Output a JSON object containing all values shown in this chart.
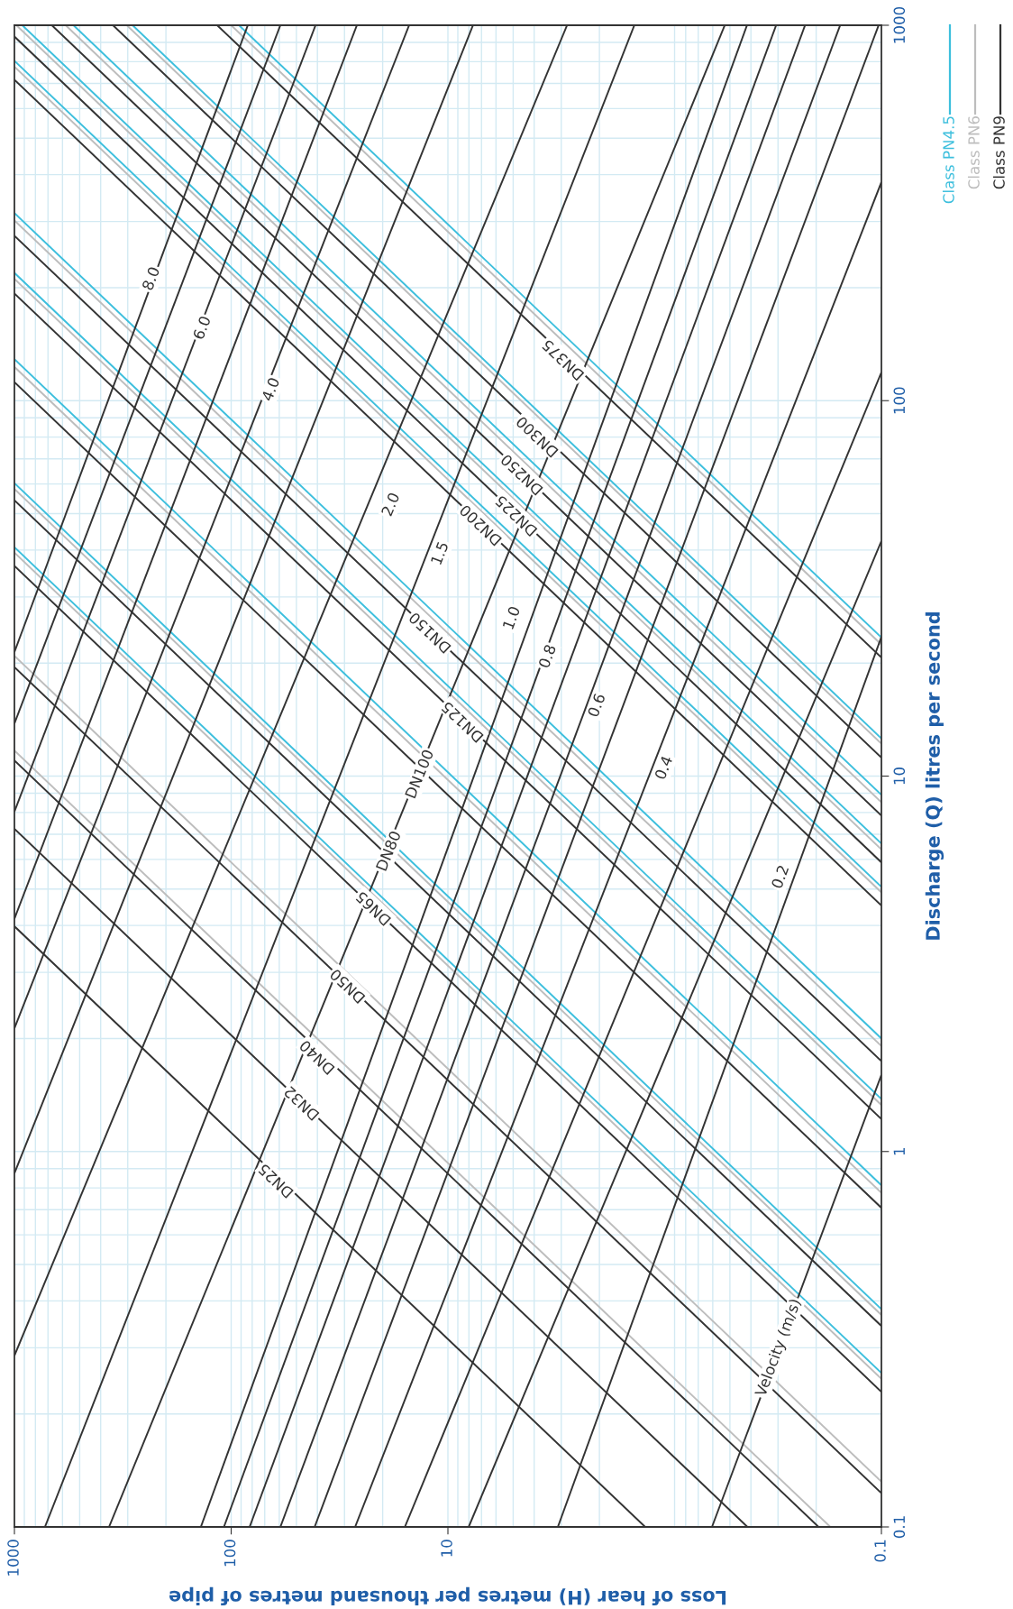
{
  "chart_data": {
    "type": "line",
    "xlabel": "Loss of hear (H) metres per thousand metres of pipe",
    "ylabel": "Discharge (Q) litres per second",
    "log": "xy",
    "xlim": [
      1000,
      0.1
    ],
    "ylim": [
      0.1,
      1000
    ],
    "xticks": [
      1000,
      100,
      10,
      0.1
    ],
    "yticks": [
      0.1,
      1,
      10,
      100,
      1000
    ],
    "grid": true,
    "legend": "top right",
    "marker": "none",
    "line_style": "solid",
    "series": [
      {
        "name": "Class PN4.5",
        "color": "#3dbfdd",
        "x": [
          92.0,
          0.1
        ],
        "values": [
          1000,
          23.4
        ]
      },
      {
        "color": "#3dbfdd",
        "x": [
          285,
          0.1
        ],
        "values": [
          1000,
          12.6
        ]
      },
      {
        "color": "#3dbfdd",
        "x": [
          534,
          0.1
        ],
        "values": [
          1000,
          8.91
        ]
      },
      {
        "color": "#3dbfdd",
        "x": [
          920,
          0.1
        ],
        "values": [
          1000,
          6.61
        ]
      },
      {
        "color": "#3dbfdd",
        "x": [
          1000,
          0.1
        ],
        "values": [
          804,
          5.07
        ]
      },
      {
        "color": "#3dbfdd",
        "x": [
          1000,
          0.1
        ],
        "values": [
          316,
          2.0
        ]
      },
      {
        "color": "#3dbfdd",
        "x": [
          1000,
          0.1
        ],
        "values": [
          219,
          1.38
        ]
      },
      {
        "color": "#3dbfdd",
        "x": [
          1000,
          0.1
        ],
        "values": [
          129,
          0.813
        ]
      },
      {
        "color": "#3dbfdd",
        "x": [
          1000,
          0.1
        ],
        "values": [
          60.3,
          0.38
        ]
      },
      {
        "color": "#3dbfdd",
        "x": [
          1000,
          0.1
        ],
        "values": [
          40.7,
          0.257
        ]
      },
      {
        "name": "Class PN6",
        "color": "#bdbdbd",
        "x": [
          100,
          0.1
        ],
        "values": [
          1000,
          22.4
        ]
      },
      {
        "color": "#bdbdbd",
        "x": [
          303,
          0.1
        ],
        "values": [
          1000,
          12.2
        ]
      },
      {
        "color": "#bdbdbd",
        "x": [
          580,
          0.1
        ],
        "values": [
          1000,
          8.51
        ]
      },
      {
        "color": "#bdbdbd",
        "x": [
          979,
          0.1
        ],
        "values": [
          1000,
          6.38
        ]
      },
      {
        "color": "#bdbdbd",
        "x": [
          1000,
          0.1
        ],
        "values": [
          776,
          4.9
        ]
      },
      {
        "color": "#bdbdbd",
        "x": [
          1000,
          0.1
        ],
        "values": [
          302,
          1.91
        ]
      },
      {
        "color": "#bdbdbd",
        "x": [
          1000,
          0.1
        ],
        "values": [
          211,
          1.33
        ]
      },
      {
        "color": "#bdbdbd",
        "x": [
          1000,
          0.1
        ],
        "values": [
          123,
          0.776
        ]
      },
      {
        "color": "#bdbdbd",
        "x": [
          1000,
          0.1
        ],
        "values": [
          58.2,
          0.367
        ]
      },
      {
        "color": "#bdbdbd",
        "x": [
          1000,
          0.1
        ],
        "values": [
          39.4,
          0.248
        ]
      },
      {
        "color": "#bdbdbd",
        "x": [
          1000,
          0.1
        ],
        "values": [
          20.9,
          0.132
        ]
      },
      {
        "color": "#bdbdbd",
        "x": [
          1000,
          0.172
        ],
        "values": [
          11.7,
          0.1
        ]
      },
      {
        "name": "Class PN9",
        "color": "#333333",
        "x": [
          116,
          0.1
        ],
        "values": [
          1000,
          20.7
        ]
      },
      {
        "color": "#333333",
        "x": [
          351,
          0.1
        ],
        "values": [
          1000,
          11.2
        ]
      },
      {
        "color": "#333333",
        "x": [
          672,
          0.1
        ],
        "values": [
          1000,
          7.85
        ]
      },
      {
        "color": "#333333",
        "x": [
          1000,
          0.1
        ],
        "values": [
          933,
          5.89
        ]
      },
      {
        "color": "#333333",
        "x": [
          1000,
          0.1
        ],
        "values": [
          716,
          4.52
        ]
      },
      {
        "color": "#333333",
        "x": [
          1000,
          0.1
        ],
        "values": [
          275,
          1.74
        ]
      },
      {
        "color": "#333333",
        "x": [
          1000,
          0.1
        ],
        "values": [
          193,
          1.22
        ]
      },
      {
        "color": "#333333",
        "x": [
          1000,
          0.1
        ],
        "values": [
          112,
          0.708
        ]
      },
      {
        "color": "#333333",
        "x": [
          1000,
          0.1
        ],
        "values": [
          54.3,
          0.343
        ]
      },
      {
        "color": "#333333",
        "x": [
          1000,
          0.1
        ],
        "values": [
          36.3,
          0.229
        ]
      },
      {
        "color": "#333333",
        "x": [
          1000,
          0.1
        ],
        "values": [
          19.5,
          0.123
        ]
      },
      {
        "color": "#333333",
        "x": [
          1000,
          0.195
        ],
        "values": [
          11.0,
          0.1
        ]
      },
      {
        "color": "#333333",
        "x": [
          1000,
          0.415
        ],
        "values": [
          7.24,
          0.1
        ]
      },
      {
        "color": "#333333",
        "x": [
          1000,
          1.23
        ],
        "values": [
          3.98,
          0.1
        ]
      },
      {
        "color": "#333333",
        "x": [
          1000,
          83.8
        ],
        "values": [
          21.4,
          1000
        ]
      },
      {
        "color": "#333333",
        "x": [
          1000,
          59.3
        ],
        "values": [
          13.8,
          1000
        ]
      },
      {
        "color": "#333333",
        "x": [
          1000,
          40.8
        ],
        "values": [
          8.04,
          1000
        ]
      },
      {
        "color": "#333333",
        "x": [
          1000,
          26.3
        ],
        "values": [
          4.17,
          1000
        ]
      },
      {
        "color": "#333333",
        "x": [
          1000,
          15.1
        ],
        "values": [
          2.13,
          1000
        ]
      },
      {
        "color": "#333333",
        "x": [
          1000,
          7.66
        ],
        "values": [
          0.875,
          1000
        ]
      },
      {
        "color": "#333333",
        "x": [
          1000,
          2.82
        ],
        "values": [
          0.286,
          1000
        ]
      },
      {
        "color": "#333333",
        "x": [
          723,
          1.38
        ],
        "values": [
          0.1,
          1000
        ]
      },
      {
        "color": "#333333",
        "x": [
          366,
          0.528
        ],
        "values": [
          0.1,
          1000
        ]
      },
      {
        "color": "#333333",
        "x": [
          138,
          0.417
        ],
        "values": [
          0.1,
          1000
        ]
      },
      {
        "color": "#333333",
        "x": [
          108,
          0.306
        ],
        "values": [
          0.1,
          1000
        ]
      },
      {
        "color": "#333333",
        "x": [
          82.2,
          0.225
        ],
        "values": [
          0.1,
          1000
        ]
      },
      {
        "color": "#333333",
        "x": [
          59.3,
          0.155
        ],
        "values": [
          0.1,
          1000
        ]
      },
      {
        "color": "#333333",
        "x": [
          41.2,
          0.103
        ],
        "values": [
          0.1,
          1000
        ]
      },
      {
        "color": "#333333",
        "x": [
          26.8,
          0.1
        ],
        "values": [
          0.1,
          382
        ]
      },
      {
        "color": "#333333",
        "x": [
          15.8,
          0.1
        ],
        "values": [
          0.1,
          119
        ]
      },
      {
        "color": "#333333",
        "x": [
          8.02,
          0.1
        ],
        "values": [
          0.1,
          42.3
        ]
      },
      {
        "color": "#333333",
        "x": [
          3.11,
          0.1
        ],
        "values": [
          0.1,
          23.5
        ]
      },
      {
        "color": "#333333",
        "x": [
          0.605,
          0.1
        ],
        "values": [
          0.1,
          1.6
        ]
      }
    ],
    "annotations": [
      {
        "text": "DN25",
        "x": 61.7,
        "y": 0.839
      },
      {
        "text": "DN32",
        "x": 46.9,
        "y": 1.35
      },
      {
        "text": "DN40",
        "x": 39.8,
        "y": 1.79
      },
      {
        "text": "DN50",
        "x": 28.8,
        "y": 2.77
      },
      {
        "text": "DN65",
        "x": 21.9,
        "y": 4.46
      },
      {
        "text": "DN80",
        "x": 18.6,
        "y": 6.3
      },
      {
        "text": "DN100",
        "x": 13.4,
        "y": 10.1
      },
      {
        "text": "DN125",
        "x": 8.5,
        "y": 14.0
      },
      {
        "text": "DN150",
        "x": 12.0,
        "y": 24.2
      },
      {
        "text": "DN200",
        "x": 7.0,
        "y": 46.8
      },
      {
        "text": "DN225",
        "x": 4.8,
        "y": 49.6
      },
      {
        "text": "DN250",
        "x": 4.52,
        "y": 63.8
      },
      {
        "text": "DN300",
        "x": 3.84,
        "y": 80.5
      },
      {
        "text": "DN375",
        "x": 2.92,
        "y": 129
      },
      {
        "text": "8.0",
        "x": 232,
        "y": 211
      },
      {
        "text": "6.0",
        "x": 135,
        "y": 156
      },
      {
        "text": "4.0",
        "x": 65.0,
        "y": 107
      },
      {
        "text": "2.0",
        "x": 18.2,
        "y": 52.8
      },
      {
        "text": "1.5",
        "x": 10.8,
        "y": 39.1
      },
      {
        "text": "1.0",
        "x": 5.04,
        "y": 26.3
      },
      {
        "text": "0.8",
        "x": 3.44,
        "y": 20.8
      },
      {
        "text": "0.6",
        "x": 2.04,
        "y": 15.4
      },
      {
        "text": "0.4",
        "x": 1.0,
        "y": 10.5
      },
      {
        "text": "0.2",
        "x": 0.29,
        "y": 5.38
      },
      {
        "text": "Velocity (m/s)",
        "x": 0.297,
        "y": 0.3
      }
    ]
  }
}
